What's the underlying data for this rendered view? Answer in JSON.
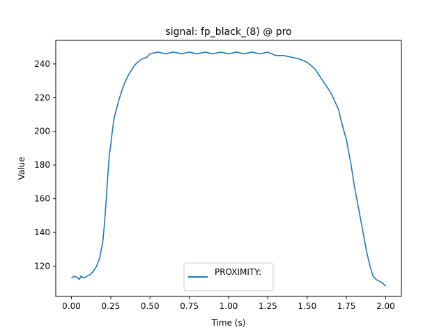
{
  "chart_data": {
    "type": "line",
    "title": "signal: fp_black_(8) @ pro",
    "xlabel": "Time (s)",
    "ylabel": "Value",
    "xlim": [
      -0.1,
      2.1
    ],
    "ylim": [
      102,
      254
    ],
    "xticks": [
      0.0,
      0.25,
      0.5,
      0.75,
      1.0,
      1.25,
      1.5,
      1.75,
      2.0
    ],
    "xtick_labels": [
      "0.00",
      "0.25",
      "0.50",
      "0.75",
      "1.00",
      "1.25",
      "1.50",
      "1.75",
      "2.00"
    ],
    "yticks": [
      120,
      140,
      160,
      180,
      200,
      220,
      240
    ],
    "ytick_labels": [
      "120",
      "140",
      "160",
      "180",
      "200",
      "220",
      "240"
    ],
    "grid": false,
    "legend": {
      "placement": "lower center",
      "entries": [
        "PROXIMITY:"
      ]
    },
    "series": [
      {
        "name": "PROXIMITY:",
        "color": "#1f77b4",
        "x": [
          0.0,
          0.02,
          0.04,
          0.05,
          0.06,
          0.08,
          0.1,
          0.12,
          0.14,
          0.16,
          0.18,
          0.2,
          0.21,
          0.22,
          0.23,
          0.24,
          0.25,
          0.26,
          0.27,
          0.28,
          0.3,
          0.32,
          0.34,
          0.36,
          0.38,
          0.4,
          0.42,
          0.45,
          0.48,
          0.5,
          0.55,
          0.6,
          0.65,
          0.7,
          0.75,
          0.8,
          0.85,
          0.9,
          0.95,
          1.0,
          1.05,
          1.1,
          1.15,
          1.2,
          1.25,
          1.3,
          1.35,
          1.4,
          1.45,
          1.5,
          1.55,
          1.6,
          1.65,
          1.7,
          1.72,
          1.75,
          1.78,
          1.8,
          1.82,
          1.84,
          1.86,
          1.88,
          1.9,
          1.92,
          1.94,
          1.96,
          1.98,
          2.0
        ],
        "y": [
          113,
          114,
          113,
          112,
          114,
          113,
          114,
          115,
          117,
          120,
          125,
          135,
          145,
          158,
          172,
          185,
          192,
          200,
          207,
          211,
          218,
          224,
          229,
          233,
          236,
          239,
          241,
          243,
          244,
          246,
          247,
          246,
          247,
          246,
          247,
          246,
          247,
          246,
          247,
          246,
          247,
          246,
          247,
          246,
          247,
          245,
          245,
          244,
          243,
          241,
          237,
          230,
          223,
          213,
          205,
          195,
          180,
          168,
          158,
          148,
          138,
          128,
          120,
          114,
          112,
          111,
          110,
          108
        ]
      }
    ]
  }
}
